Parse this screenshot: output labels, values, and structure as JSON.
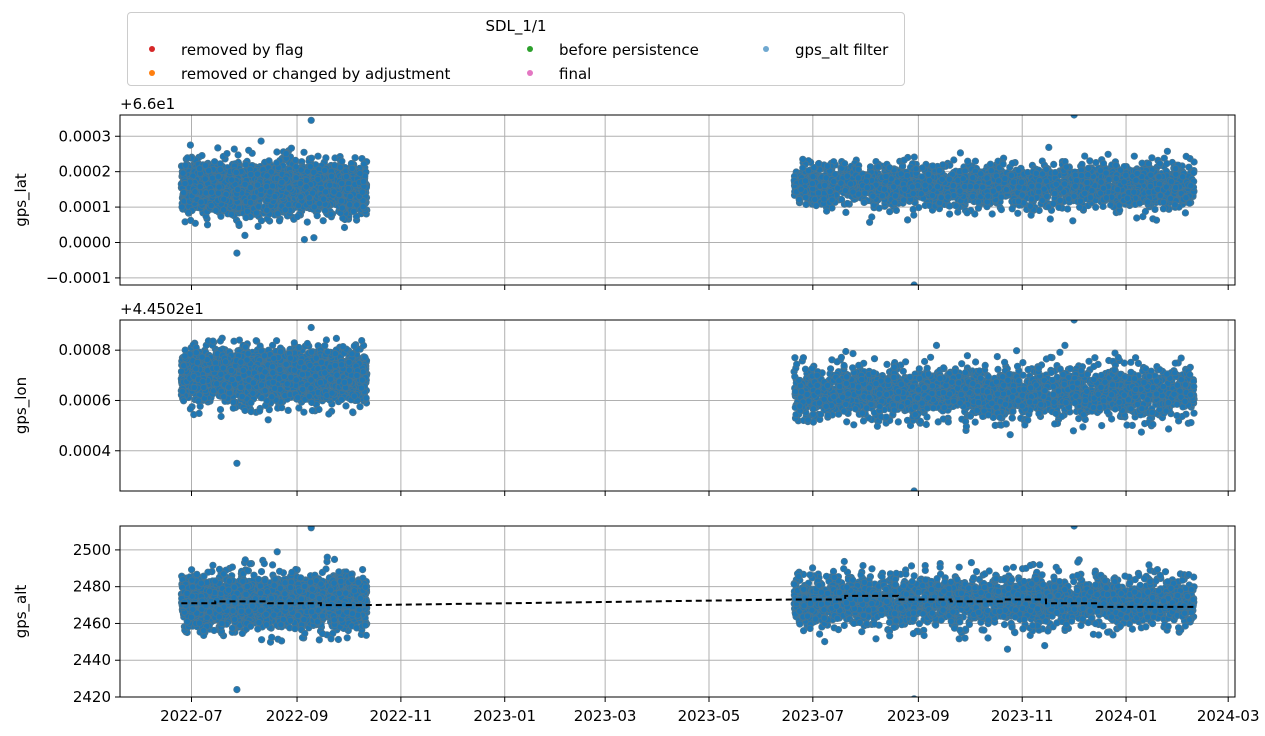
{
  "chart_data": {
    "type": "scatter",
    "legend": {
      "title": "SDL_1/1",
      "placement": "top",
      "entries": [
        {
          "label": "removed by flag",
          "color": "#d62728"
        },
        {
          "label": "removed or changed by adjustment",
          "color": "#ff7f0e"
        },
        {
          "label": "before persistence",
          "color": "#2ca02c"
        },
        {
          "label": "final",
          "color": "#e377c2"
        },
        {
          "label": "gps_alt filter",
          "color": "#6fa8d0"
        }
      ]
    },
    "x_axis": {
      "type": "date",
      "range": [
        "2022-05-20",
        "2024-03-05"
      ],
      "tick_labels": [
        "2022-07",
        "2022-09",
        "2022-11",
        "2023-01",
        "2023-03",
        "2023-05",
        "2023-07",
        "2023-09",
        "2023-11",
        "2024-01",
        "2024-03"
      ],
      "grid": true
    },
    "data_segments": [
      {
        "start": "2022-06-25",
        "end": "2022-10-12"
      },
      {
        "start": "2023-06-20",
        "end": "2024-02-10"
      }
    ],
    "point_color": "#1f77b4",
    "point_edge_color": "#4a7590",
    "panels": [
      {
        "ylabel": "gps_lat",
        "offset_label": "+6.6e1",
        "ylim": [
          -0.00012,
          0.00036
        ],
        "yticks": [
          -0.0001,
          0.0,
          0.0001,
          0.0002,
          0.0003
        ],
        "ytick_labels": [
          "−0.0001",
          "0.0000",
          "0.0001",
          "0.0002",
          "0.0003"
        ],
        "grid": true,
        "segments": [
          {
            "mean": 0.000155,
            "spread": 3.5e-05,
            "min": -3e-05,
            "max": 0.000345
          },
          {
            "mean": 0.00016,
            "spread": 3e-05,
            "min": -0.00012,
            "max": 0.00036
          }
        ]
      },
      {
        "ylabel": "gps_lon",
        "offset_label": "+4.4502e1",
        "ylim": [
          0.00024,
          0.00092
        ],
        "yticks": [
          0.0004,
          0.0006,
          0.0008
        ],
        "ytick_labels": [
          "0.0004",
          "0.0006",
          "0.0008"
        ],
        "grid": true,
        "segments": [
          {
            "mean": 0.0007,
            "spread": 5e-05,
            "min": 0.00035,
            "max": 0.00089
          },
          {
            "mean": 0.00063,
            "spread": 5e-05,
            "min": 0.00024,
            "max": 0.00092
          }
        ]
      },
      {
        "ylabel": "gps_alt",
        "offset_label": "",
        "ylim": [
          2420,
          2513
        ],
        "yticks": [
          2420,
          2440,
          2460,
          2480,
          2500
        ],
        "ytick_labels": [
          "2420",
          "2440",
          "2460",
          "2480",
          "2500"
        ],
        "grid": true,
        "segments": [
          {
            "mean": 2472,
            "spread": 7,
            "min": 2424,
            "max": 2512
          },
          {
            "mean": 2472,
            "spread": 7,
            "min": 2419,
            "max": 2513
          }
        ],
        "dashed_line": {
          "color": "#000000",
          "points": [
            [
              "2022-06-25",
              2471
            ],
            [
              "2022-07-15",
              2471
            ],
            [
              "2022-07-15",
              2472
            ],
            [
              "2022-08-15",
              2472
            ],
            [
              "2022-08-15",
              2471
            ],
            [
              "2022-09-15",
              2471
            ],
            [
              "2022-09-15",
              2470
            ],
            [
              "2022-10-12",
              2470
            ],
            [
              "2023-06-20",
              2473
            ],
            [
              "2023-07-20",
              2473
            ],
            [
              "2023-07-20",
              2475
            ],
            [
              "2023-08-20",
              2475
            ],
            [
              "2023-08-20",
              2473
            ],
            [
              "2023-09-20",
              2473
            ],
            [
              "2023-09-20",
              2472
            ],
            [
              "2023-10-20",
              2472
            ],
            [
              "2023-10-20",
              2473
            ],
            [
              "2023-11-15",
              2473
            ],
            [
              "2023-11-15",
              2471
            ],
            [
              "2023-12-15",
              2471
            ],
            [
              "2023-12-15",
              2469
            ],
            [
              "2024-02-10",
              2469
            ]
          ]
        }
      }
    ]
  }
}
